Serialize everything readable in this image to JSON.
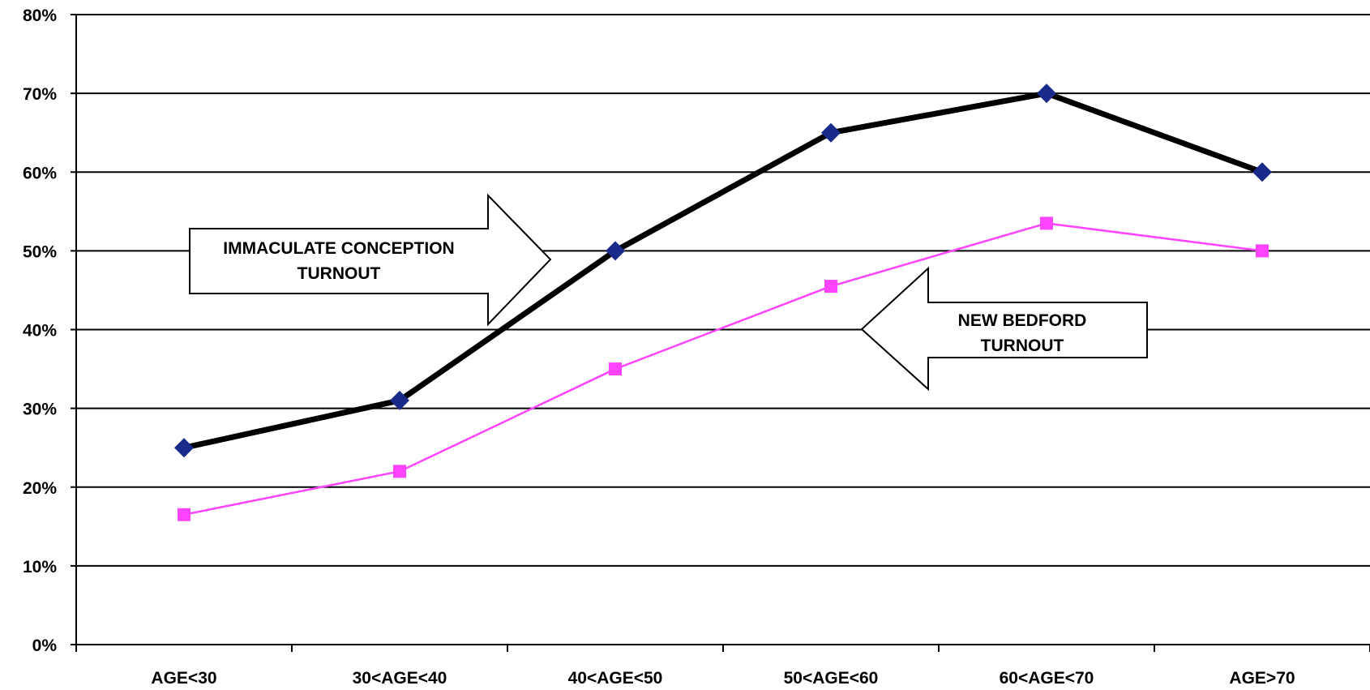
{
  "chart_data": {
    "type": "line",
    "categories": [
      "AGE<30",
      "30<AGE<40",
      "40<AGE<50",
      "50<AGE<60",
      "60<AGE<70",
      "AGE>70"
    ],
    "series": [
      {
        "name": "IMMACULATE CONCEPTION TURNOUT",
        "values": [
          25,
          31,
          50,
          65,
          70,
          60
        ],
        "color": "#000000",
        "marker_color": "#1a2a8a",
        "marker": "diamond"
      },
      {
        "name": "NEW BEDFORD TURNOUT",
        "values": [
          16.5,
          22,
          35,
          45.5,
          53.5,
          50
        ],
        "color": "#ff44ff",
        "marker_color": "#ff44ff",
        "marker": "square"
      }
    ],
    "ylim": [
      0,
      80
    ],
    "yticks": [
      "0%",
      "10%",
      "20%",
      "30%",
      "40%",
      "50%",
      "60%",
      "70%",
      "80%"
    ],
    "title": "",
    "xlabel": "",
    "ylabel": "",
    "grid": true,
    "annotations": [
      {
        "lines": [
          "IMMACULATE CONCEPTION",
          "TURNOUT"
        ],
        "direction": "right",
        "series": 0
      },
      {
        "lines": [
          "NEW BEDFORD",
          "TURNOUT"
        ],
        "direction": "left",
        "series": 1
      }
    ]
  }
}
